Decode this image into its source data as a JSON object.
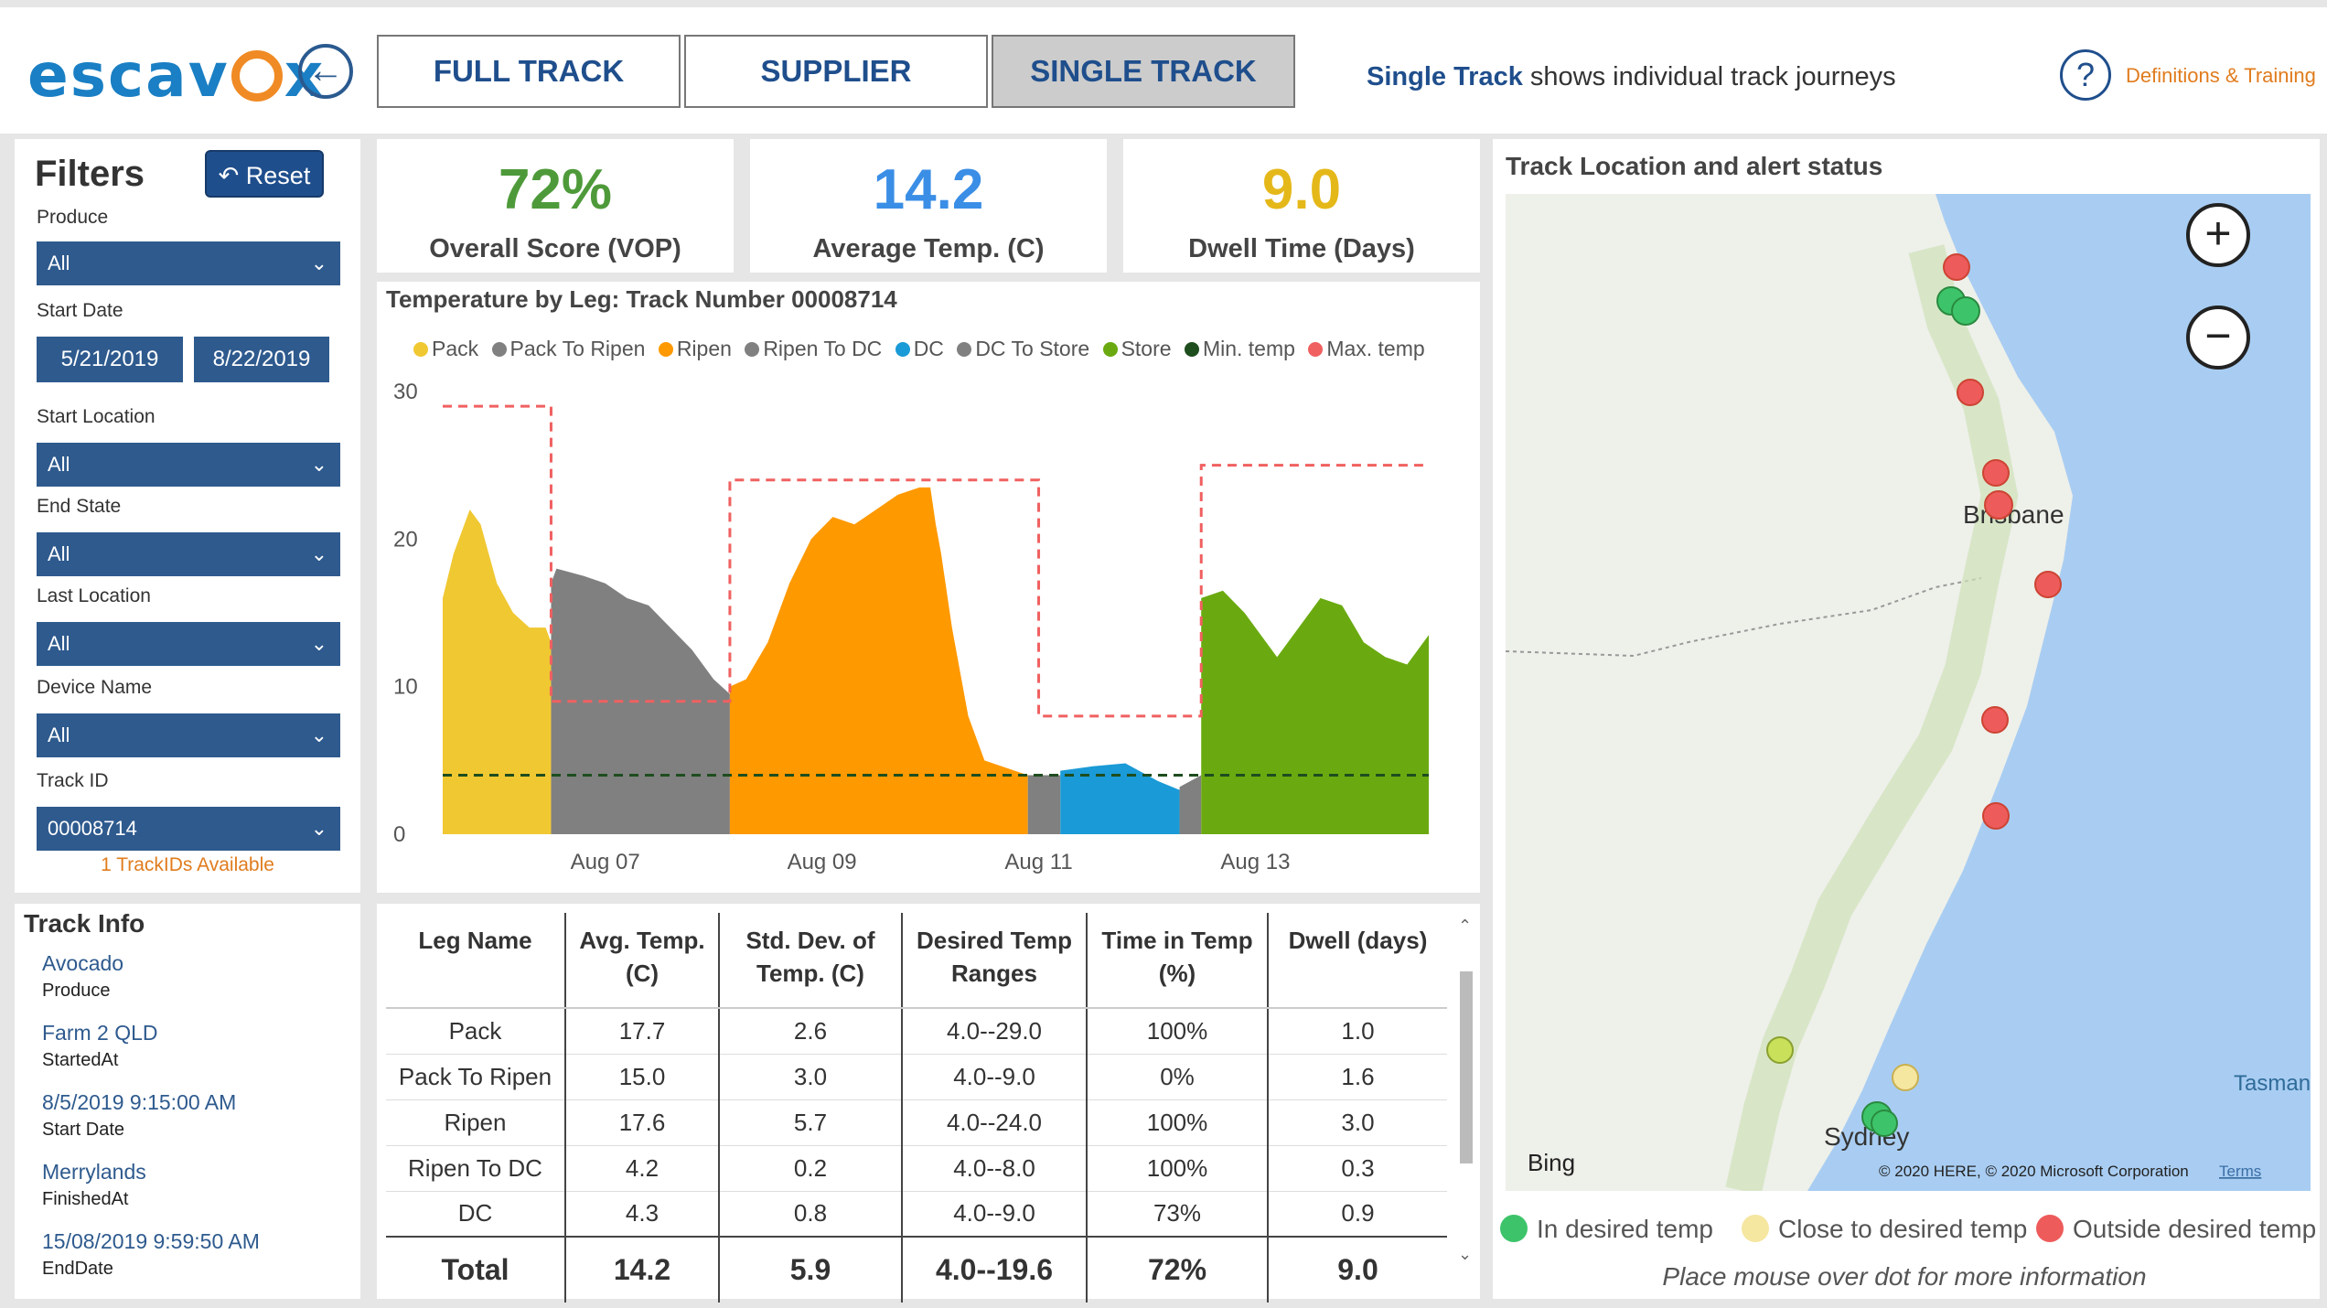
{
  "header": {
    "logo": "escavox",
    "tabs": [
      {
        "label": "FULL TRACK",
        "active": false
      },
      {
        "label": "SUPPLIER",
        "active": false
      },
      {
        "label": "SINGLE TRACK",
        "active": true
      }
    ],
    "tagline_bold": "Single Track",
    "tagline_rest": " shows individual track journeys",
    "help_label": "Definitions & Training",
    "back_icon": "back-arrow-icon",
    "help_icon": "question-icon"
  },
  "filters": {
    "title": "Filters",
    "reset_label": "Reset",
    "produce_label": "Produce",
    "produce_value": "All",
    "start_date_label": "Start Date",
    "start_date_from": "5/21/2019",
    "start_date_to": "8/22/2019",
    "start_location_label": "Start Location",
    "start_location_value": "All",
    "end_state_label": "End State",
    "end_state_value": "All",
    "last_location_label": "Last Location",
    "last_location_value": "All",
    "device_name_label": "Device Name",
    "device_name_value": "All",
    "track_id_label": "Track ID",
    "track_id_value": "00008714",
    "available_text": "1 TrackIDs Available"
  },
  "track_info": {
    "title": "Track Info",
    "items": [
      {
        "value": "Avocado",
        "label": "Produce"
      },
      {
        "value": "Farm 2 QLD",
        "label": "StartedAt"
      },
      {
        "value": "8/5/2019 9:15:00 AM",
        "label": "Start Date"
      },
      {
        "value": "Merrylands",
        "label": "FinishedAt"
      },
      {
        "value": "15/08/2019 9:59:50 AM",
        "label": "EndDate"
      }
    ]
  },
  "kpis": [
    {
      "value": "72%",
      "label": "Overall Score (VOP)",
      "color": "#4e9a3a"
    },
    {
      "value": "14.2",
      "label": "Average Temp. (C)",
      "color": "#3a8ee6"
    },
    {
      "value": "9.0",
      "label": "Dwell Time (Days)",
      "color": "#e5b81a"
    }
  ],
  "chart": {
    "title": "Temperature by Leg: Track Number 00008714",
    "legend": [
      {
        "name": "Pack",
        "color": "#f0c832"
      },
      {
        "name": "Pack To Ripen",
        "color": "#808080"
      },
      {
        "name": "Ripen",
        "color": "#ff9900"
      },
      {
        "name": "Ripen To DC",
        "color": "#808080"
      },
      {
        "name": "DC",
        "color": "#1a9ad6"
      },
      {
        "name": "DC To Store",
        "color": "#808080"
      },
      {
        "name": "Store",
        "color": "#6aaa10"
      },
      {
        "name": "Min. temp",
        "color": "#1e4d1e"
      },
      {
        "name": "Max. temp",
        "color": "#f06060"
      }
    ]
  },
  "chart_data": {
    "type": "area",
    "title": "Temperature by Leg: Track Number 00008714",
    "x_ticks": [
      "Aug 07",
      "Aug 09",
      "Aug 11",
      "Aug 13"
    ],
    "x_tick_days": [
      7,
      9,
      11,
      13
    ],
    "y_ticks": [
      0,
      10,
      20,
      30
    ],
    "ylim": [
      0,
      30
    ],
    "xlim": [
      5.5,
      14.6
    ],
    "series": [
      {
        "name": "Pack",
        "color": "#f0c832",
        "x": [
          5.5,
          5.6,
          5.75,
          5.85,
          6.0,
          6.15,
          6.3,
          6.45,
          6.5
        ],
        "y": [
          16,
          19,
          22,
          21,
          17,
          15,
          14,
          14,
          13
        ]
      },
      {
        "name": "Pack To Ripen",
        "color": "#808080",
        "x": [
          6.5,
          6.55,
          6.8,
          7.0,
          7.2,
          7.4,
          7.6,
          7.8,
          8.0,
          8.15
        ],
        "y": [
          17,
          18,
          17.5,
          17,
          16,
          15.5,
          14,
          12.5,
          10.5,
          9.5
        ]
      },
      {
        "name": "Ripen",
        "color": "#ff9900",
        "x": [
          8.15,
          8.3,
          8.5,
          8.7,
          8.9,
          9.1,
          9.3,
          9.5,
          9.7,
          9.9,
          10.0,
          10.05,
          10.1,
          10.2,
          10.35,
          10.5,
          10.9
        ],
        "y": [
          10,
          10.5,
          13,
          17,
          20,
          21.5,
          21,
          22,
          23,
          23.5,
          23.5,
          21,
          19,
          14,
          8,
          5,
          4
        ]
      },
      {
        "name": "Ripen To DC",
        "color": "#808080",
        "x": [
          10.9,
          11.2
        ],
        "y": [
          4,
          4
        ]
      },
      {
        "name": "DC",
        "color": "#1a9ad6",
        "x": [
          11.2,
          11.5,
          11.8,
          12.1,
          12.3
        ],
        "y": [
          4.3,
          4.6,
          4.8,
          3.6,
          3
        ]
      },
      {
        "name": "DC To Store",
        "color": "#808080",
        "x": [
          12.3,
          12.5
        ],
        "y": [
          3.2,
          4
        ]
      },
      {
        "name": "Store",
        "color": "#6aaa10",
        "x": [
          12.5,
          12.7,
          12.9,
          13.2,
          13.4,
          13.6,
          13.8,
          14.0,
          14.2,
          14.4,
          14.6
        ],
        "y": [
          16,
          16.5,
          15,
          12,
          14,
          16,
          15.5,
          13,
          12,
          11.5,
          13.5
        ]
      },
      {
        "name": "Min. temp",
        "color": "#1e4d1e",
        "x": [
          5.5,
          14.6
        ],
        "y": [
          4,
          4
        ]
      },
      {
        "name": "Max. temp",
        "color": "#f06060",
        "x": [
          5.5,
          6.5,
          6.5,
          8.15,
          8.15,
          11.0,
          11.0,
          12.5,
          12.5,
          14.6
        ],
        "y": [
          29,
          29,
          9,
          9,
          24,
          24,
          8,
          8,
          25,
          25
        ]
      }
    ]
  },
  "table": {
    "headers": [
      "Leg Name",
      "Avg. Temp. (C)",
      "Std. Dev. of Temp. (C)",
      "Desired Temp Ranges",
      "Time in Temp (%)",
      "Dwell (days)"
    ],
    "rows": [
      [
        "Pack",
        "17.7",
        "2.6",
        "4.0--29.0",
        "100%",
        "1.0"
      ],
      [
        "Pack To Ripen",
        "15.0",
        "3.0",
        "4.0--9.0",
        "0%",
        "1.6"
      ],
      [
        "Ripen",
        "17.6",
        "5.7",
        "4.0--24.0",
        "100%",
        "3.0"
      ],
      [
        "Ripen To DC",
        "4.2",
        "0.2",
        "4.0--8.0",
        "100%",
        "0.3"
      ],
      [
        "DC",
        "4.3",
        "0.8",
        "4.0--9.0",
        "73%",
        "0.9"
      ]
    ],
    "total": [
      "Total",
      "14.2",
      "5.9",
      "4.0--19.6",
      "72%",
      "9.0"
    ]
  },
  "map": {
    "title": "Track Location and alert status",
    "labels": {
      "brisbane": "Brisbane",
      "sydney": "Sydney",
      "tasman": "Tasman",
      "bing": "Bing",
      "copyright": "© 2020 HERE, © 2020 Microsoft Corporation",
      "terms": "Terms"
    },
    "zoom_in_icon": "plus-icon",
    "zoom_out_icon": "minus-icon",
    "legend": [
      {
        "label": "In desired temp",
        "color": "#3dc46a"
      },
      {
        "label": "Close to desired temp",
        "color": "#f5e6a0"
      },
      {
        "label": "Outside desired temp",
        "color": "#ee5b5b"
      }
    ],
    "hint": "Place mouse over dot for more information"
  }
}
